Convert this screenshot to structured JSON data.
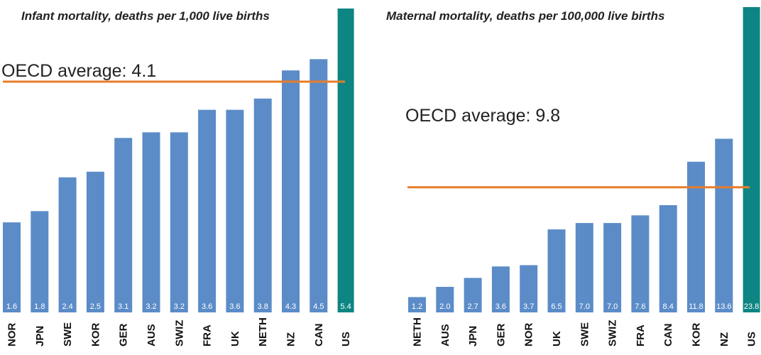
{
  "chart_data": [
    {
      "type": "bar",
      "title": "Infant mortality, deaths per 1,000 live births",
      "categories": [
        "NOR",
        "JPN",
        "SWE",
        "KOR",
        "GER",
        "AUS",
        "SWIZ",
        "FRA",
        "UK",
        "NETH",
        "NZ",
        "CAN",
        "US"
      ],
      "values": [
        1.6,
        1.8,
        2.4,
        2.5,
        3.1,
        3.2,
        3.2,
        3.6,
        3.6,
        3.8,
        4.3,
        4.5,
        5.4
      ],
      "value_labels": [
        "1.6",
        "1.8",
        "2.4",
        "2.5",
        "3.1",
        "3.2",
        "3.2",
        "3.6",
        "3.6",
        "3.8",
        "4.3",
        "4.5",
        "5.4"
      ],
      "average": {
        "label": "OECD average: 4.1",
        "value": 4.1
      },
      "highlight_category": "US",
      "ylim": [
        0,
        5.4
      ]
    },
    {
      "type": "bar",
      "title": "Maternal mortality, deaths per 100,000 live births",
      "categories": [
        "NETH",
        "AUS",
        "JPN",
        "GER",
        "NOR",
        "UK",
        "SWE",
        "SWIZ",
        "FRA",
        "CAN",
        "KOR",
        "NZ",
        "US"
      ],
      "values": [
        1.2,
        2.0,
        2.7,
        3.6,
        3.7,
        6.5,
        7.0,
        7.0,
        7.6,
        8.4,
        11.8,
        13.6,
        23.8
      ],
      "value_labels": [
        "1.2",
        "2.0",
        "2.7",
        "3.6",
        "3.7",
        "6.5",
        "7.0",
        "7.0",
        "7.6",
        "8.4",
        "11.8",
        "13.6",
        "23.8"
      ],
      "average": {
        "label": "OECD average: 9.8",
        "value": 9.8
      },
      "highlight_category": "US",
      "ylim": [
        0,
        23.8
      ]
    }
  ],
  "colors": {
    "bar": "#5b8cc8",
    "highlight_bar": "#0d8583",
    "average_line": "#e87d2a",
    "bar_value_text": "#ffffff",
    "axis_text": "#111111"
  }
}
